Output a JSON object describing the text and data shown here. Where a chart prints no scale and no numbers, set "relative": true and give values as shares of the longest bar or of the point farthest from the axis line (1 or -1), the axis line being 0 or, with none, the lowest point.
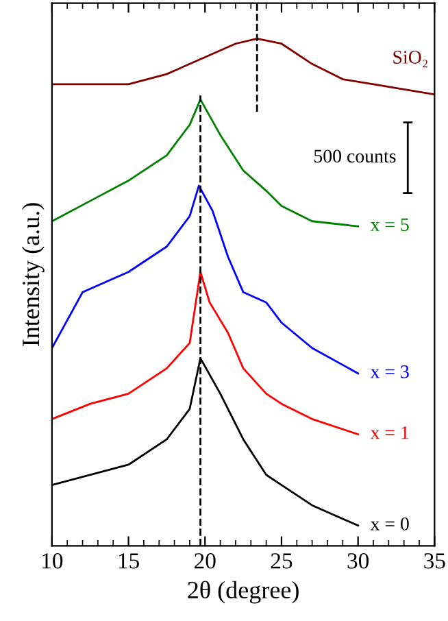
{
  "chart_data": {
    "type": "line",
    "relative": true,
    "xlabel": "2θ (degree)",
    "ylabel": "Intensity (a.u.)",
    "xlim": [
      10,
      35
    ],
    "xticks": [
      10,
      15,
      20,
      25,
      30,
      35
    ],
    "tick_labels": "x",
    "line_style": "solid",
    "marker": "none",
    "grid": false,
    "legend": false,
    "series": [
      {
        "name": "x = 0",
        "color": "#000000",
        "x": [
          10,
          15,
          17.5,
          19,
          19.7,
          21,
          22.5,
          24,
          25,
          27,
          30
        ],
        "values": [
          0.12,
          0.16,
          0.21,
          0.27,
          0.37,
          0.3,
          0.21,
          0.14,
          0.12,
          0.08,
          0.04
        ]
      },
      {
        "name": "x = 1",
        "color": "#ff0000",
        "x": [
          10,
          12.5,
          15,
          17.5,
          19,
          19.7,
          20.3,
          21.5,
          22.5,
          24,
          25,
          27,
          30
        ],
        "values": [
          0.25,
          0.28,
          0.3,
          0.35,
          0.4,
          0.54,
          0.48,
          0.42,
          0.35,
          0.3,
          0.28,
          0.25,
          0.22
        ]
      },
      {
        "name": "x = 3",
        "color": "#0000ff",
        "x": [
          10,
          12,
          15,
          17.5,
          19,
          19.6,
          20.5,
          21.5,
          22.5,
          24,
          25,
          27,
          30
        ],
        "values": [
          0.39,
          0.5,
          0.54,
          0.59,
          0.65,
          0.71,
          0.66,
          0.57,
          0.5,
          0.48,
          0.44,
          0.39,
          0.34
        ]
      },
      {
        "name": "x = 5",
        "color": "#008000",
        "x": [
          10,
          12.5,
          15,
          17.5,
          19,
          19.7,
          21,
          22.5,
          24,
          25,
          27,
          30
        ],
        "values": [
          0.64,
          0.68,
          0.72,
          0.77,
          0.83,
          0.88,
          0.81,
          0.74,
          0.7,
          0.67,
          0.64,
          0.63
        ]
      },
      {
        "name": "SiO₂",
        "color": "#800000",
        "x": [
          10,
          12.5,
          15,
          17.5,
          19,
          20.5,
          22,
          23.4,
          25,
          27,
          29,
          31,
          33,
          35
        ],
        "values": [
          0.91,
          0.91,
          0.91,
          0.93,
          0.95,
          0.97,
          0.99,
          1,
          0.99,
          0.95,
          0.92,
          0.91,
          0.9,
          0.89
        ]
      }
    ],
    "ref_lines": [
      {
        "axis": "x",
        "value": 19.7,
        "color": "#000000",
        "line_style": "dashed"
      },
      {
        "axis": "x",
        "value": 23.4,
        "color": "#000000",
        "line_style": "dashed"
      }
    ],
    "annotations": [
      "500 counts"
    ]
  }
}
